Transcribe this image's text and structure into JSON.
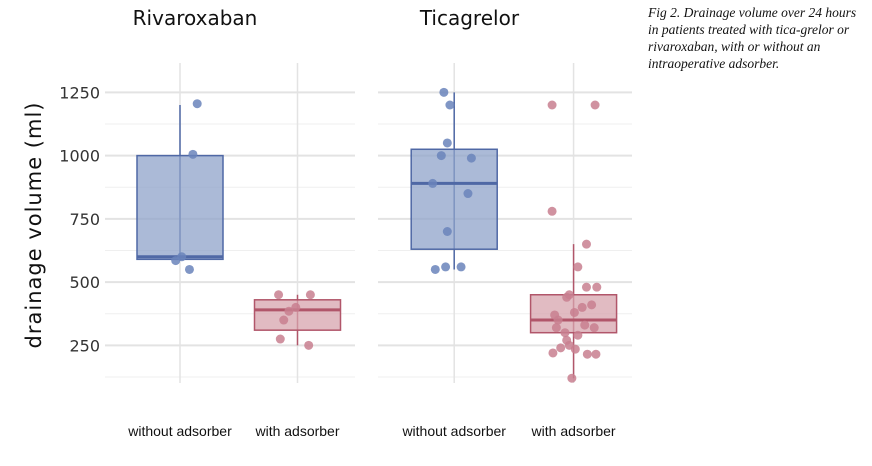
{
  "caption": "Fig 2.  Drainage volume over 24 hours in patients treated with tica-grelor or rivaroxaban, with or without an intraoperative adsorber.",
  "colors": {
    "without_fill": "#8fa3c9",
    "without_stroke": "#4f68a5",
    "without_point": "#6a84bb",
    "with_fill": "#d7a4ae",
    "with_stroke": "#b1566a",
    "with_point": "#c87f8f",
    "grid": "#e3e3e3",
    "text": "#111111",
    "tick": "#333333"
  },
  "chart_data": {
    "type": "box",
    "ylabel": "drainage volume (ml)",
    "ylim": [
      100,
      1300
    ],
    "yticks": [
      250,
      500,
      750,
      1000,
      1250
    ],
    "grid": true,
    "categories": [
      "without adsorber",
      "with adsorber"
    ],
    "panels": [
      {
        "title": "Rivaroxaban",
        "groups": [
          {
            "category": "without adsorber",
            "box": {
              "q1": 590,
              "median": 600,
              "q3": 1000,
              "whisker_low": 590,
              "whisker_high": 1200
            },
            "points": [
              [
                0.2,
                1205
              ],
              [
                0.15,
                1005
              ],
              [
                0.02,
                600
              ],
              [
                -0.05,
                585
              ],
              [
                0.11,
                550
              ]
            ]
          },
          {
            "category": "with adsorber",
            "box": {
              "q1": 310,
              "median": 390,
              "q3": 430,
              "whisker_low": 250,
              "whisker_high": 450
            },
            "points": [
              [
                -0.22,
                450
              ],
              [
                0.15,
                450
              ],
              [
                -0.02,
                400
              ],
              [
                -0.1,
                385
              ],
              [
                -0.16,
                350
              ],
              [
                -0.2,
                275
              ],
              [
                0.13,
                250
              ]
            ]
          }
        ]
      },
      {
        "title": "Ticagrelor",
        "groups": [
          {
            "category": "without adsorber",
            "box": {
              "q1": 630,
              "median": 890,
              "q3": 1025,
              "whisker_low": 550,
              "whisker_high": 1250
            },
            "points": [
              [
                -0.12,
                1250
              ],
              [
                -0.05,
                1200
              ],
              [
                -0.08,
                1050
              ],
              [
                -0.15,
                1000
              ],
              [
                0.2,
                990
              ],
              [
                -0.25,
                890
              ],
              [
                0.16,
                850
              ],
              [
                -0.08,
                700
              ],
              [
                0.08,
                560
              ],
              [
                -0.1,
                560
              ],
              [
                -0.22,
                550
              ]
            ]
          },
          {
            "category": "with adsorber",
            "box": {
              "q1": 300,
              "median": 350,
              "q3": 450,
              "whisker_low": 120,
              "whisker_high": 650
            },
            "points": [
              [
                -0.25,
                1200
              ],
              [
                0.25,
                1200
              ],
              [
                -0.25,
                780
              ],
              [
                0.15,
                650
              ],
              [
                0.05,
                560
              ],
              [
                0.15,
                480
              ],
              [
                0.27,
                480
              ],
              [
                -0.05,
                450
              ],
              [
                0.1,
                400
              ],
              [
                -0.08,
                440
              ],
              [
                0.21,
                410
              ],
              [
                -0.22,
                370
              ],
              [
                0.01,
                380
              ],
              [
                -0.18,
                350
              ],
              [
                0.13,
                330
              ],
              [
                0.24,
                320
              ],
              [
                -0.2,
                320
              ],
              [
                -0.1,
                300
              ],
              [
                0.05,
                290
              ],
              [
                -0.08,
                270
              ],
              [
                -0.05,
                250
              ],
              [
                -0.15,
                240
              ],
              [
                0.02,
                235
              ],
              [
                -0.24,
                220
              ],
              [
                0.16,
                215
              ],
              [
                0.26,
                215
              ],
              [
                -0.02,
                120
              ]
            ]
          }
        ]
      }
    ]
  }
}
